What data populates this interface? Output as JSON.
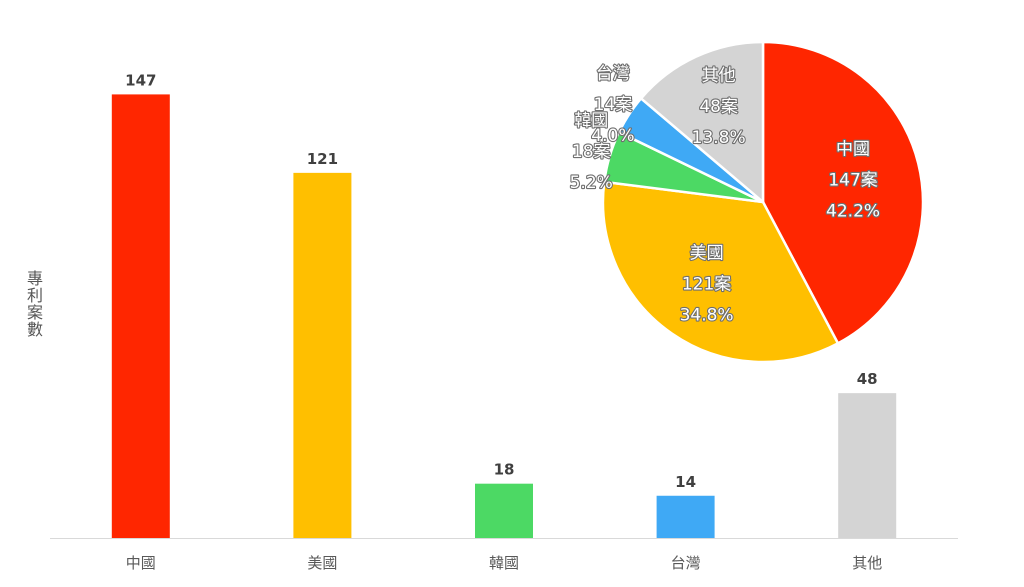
{
  "chart_data": [
    {
      "type": "bar",
      "ylabel": "專利案數",
      "xlabel": "",
      "title": "",
      "categories": [
        "中國",
        "美國",
        "韓國",
        "台灣",
        "其他"
      ],
      "values": [
        147,
        121,
        18,
        14,
        48
      ],
      "data_labels": [
        "147",
        "121",
        "18",
        "14",
        "48"
      ],
      "colors": [
        "#ff2600",
        "#ffbf00",
        "#4cd964",
        "#3fa9f5",
        "#d4d4d4"
      ],
      "ylim": [
        0,
        170
      ],
      "grid": false,
      "legend": "none"
    },
    {
      "type": "pie",
      "title": "",
      "labels": [
        "中國",
        "美國",
        "韓國",
        "台灣",
        "其他"
      ],
      "values": [
        147,
        121,
        18,
        14,
        48
      ],
      "count_labels": [
        "147案",
        "121案",
        "18案",
        "14案",
        "48案"
      ],
      "percent_labels": [
        "42.2%",
        "34.8%",
        "5.2%",
        "4.0%",
        "13.8%"
      ],
      "colors": [
        "#ff2600",
        "#ffbf00",
        "#4cd964",
        "#3fa9f5",
        "#d4d4d4"
      ],
      "start": "top",
      "direction": "clockwise",
      "legend": "none"
    }
  ]
}
